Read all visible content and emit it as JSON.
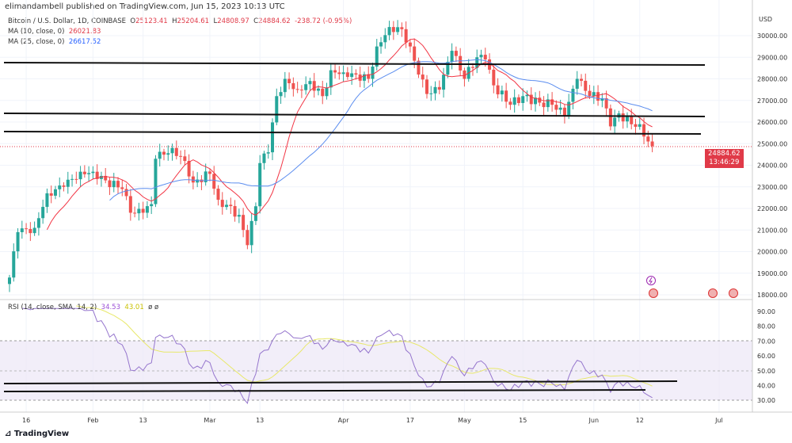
{
  "publisher": "elimandambell published on TradingView.com, Jun 15, 2023 10:13 UTC",
  "symbol": "Bitcoin / U.S. Dollar, 1D, COINBASE",
  "ohlc": {
    "o_label": "O",
    "o": "25123.41",
    "h_label": "H",
    "h": "25204.61",
    "l_label": "L",
    "l": "24808.97",
    "c_label": "C",
    "c": "24884.62",
    "change": "-238.72 (-0.95%)"
  },
  "ma10": {
    "label": "MA (10, close, 0)",
    "value": "26021.83"
  },
  "ma25": {
    "label": "MA (25, close, 0)",
    "value": "26617.52"
  },
  "rsi": {
    "label": "RSI (14, close, SMA, 14, 2)",
    "value": "34.53",
    "sma": "43.01",
    "extra": "ø ø"
  },
  "price_tag": {
    "price": "24884.62",
    "countdown": "13:46:29"
  },
  "footer": "TradingView",
  "colors": {
    "up": "#26a69a",
    "down": "#ef5350",
    "ma10": "#f23645",
    "ma25": "#5b8def",
    "rsi": "#9575cd",
    "rsi_sma": "#e8e86a"
  },
  "chart_data": {
    "type": "candlestick",
    "currency": "USD",
    "x_ticks": [
      "16",
      "Feb",
      "13",
      "Mar",
      "13",
      "Apr",
      "17",
      "May",
      "15",
      "Jun",
      "12",
      "Jul"
    ],
    "y_ticks": [
      "18000.00",
      "19000.00",
      "20000.00",
      "21000.00",
      "22000.00",
      "23000.00",
      "24000.00",
      "25000.00",
      "26000.00",
      "27000.00",
      "28000.00",
      "29000.00",
      "30000.00"
    ],
    "ylim": [
      17800,
      31000
    ],
    "rsi_ticks": [
      "30.00",
      "40.00",
      "50.00",
      "60.00",
      "70.00",
      "80.00",
      "90.00"
    ],
    "close_anchors": [
      [
        0,
        18800
      ],
      [
        2,
        20900
      ],
      [
        6,
        21100
      ],
      [
        9,
        22700
      ],
      [
        13,
        23000
      ],
      [
        17,
        23700
      ],
      [
        20,
        23700
      ],
      [
        23,
        23300
      ],
      [
        27,
        22900
      ],
      [
        29,
        21800
      ],
      [
        32,
        21800
      ],
      [
        34,
        22200
      ],
      [
        35,
        24300
      ],
      [
        39,
        24800
      ],
      [
        42,
        24200
      ],
      [
        44,
        23200
      ],
      [
        48,
        23600
      ],
      [
        50,
        22400
      ],
      [
        55,
        21700
      ],
      [
        57,
        20300
      ],
      [
        59,
        22100
      ],
      [
        60,
        24100
      ],
      [
        62,
        24600
      ],
      [
        64,
        27200
      ],
      [
        66,
        28000
      ],
      [
        69,
        27500
      ],
      [
        72,
        27900
      ],
      [
        75,
        27200
      ],
      [
        77,
        28400
      ],
      [
        80,
        28300
      ],
      [
        83,
        28200
      ],
      [
        86,
        28000
      ],
      [
        88,
        29500
      ],
      [
        91,
        30400
      ],
      [
        94,
        30300
      ],
      [
        96,
        29500
      ],
      [
        98,
        28200
      ],
      [
        100,
        27300
      ],
      [
        103,
        27500
      ],
      [
        106,
        29300
      ],
      [
        109,
        28000
      ],
      [
        112,
        29000
      ],
      [
        114,
        28900
      ],
      [
        116,
        27700
      ],
      [
        120,
        26800
      ],
      [
        123,
        27200
      ],
      [
        127,
        26900
      ],
      [
        130,
        26800
      ],
      [
        133,
        26300
      ],
      [
        136,
        28000
      ],
      [
        139,
        27200
      ],
      [
        142,
        27100
      ],
      [
        144,
        25800
      ],
      [
        146,
        26400
      ],
      [
        149,
        25900
      ],
      [
        151,
        25900
      ],
      [
        153,
        25100
      ],
      [
        154,
        24884.62
      ]
    ]
  }
}
